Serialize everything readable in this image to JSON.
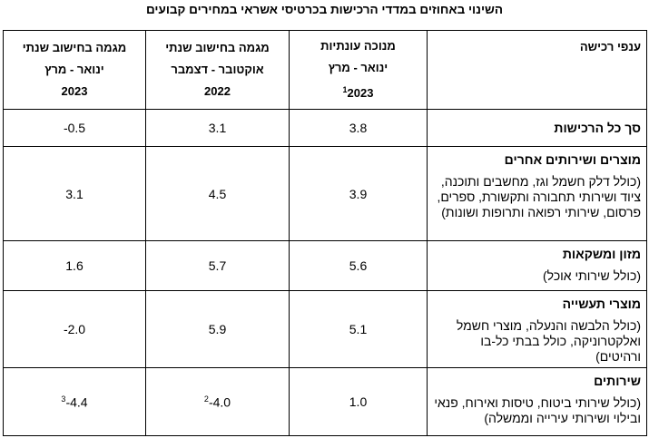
{
  "title": "השינוי באחוזים במדדי הרכישות בכרטיסי אשראי במחירים קבועים",
  "table": {
    "columns": [
      {
        "lines": [
          "ענפי רכישה"
        ]
      },
      {
        "lines": [
          "מנוכה עונתיות",
          "ינואר - מרץ",
          "2023"
        ],
        "note": "1"
      },
      {
        "lines": [
          "מגמה בחישוב שנתי",
          "אוקטובר - דצמבר",
          "2022"
        ]
      },
      {
        "lines": [
          "מגמה בחישוב שנתי",
          "ינואר - מרץ",
          "2023"
        ]
      }
    ],
    "rows": [
      {
        "name": "סך כל הרכישות",
        "values": [
          {
            "text": "3.8"
          },
          {
            "text": "3.1"
          },
          {
            "text": "-0.5"
          }
        ]
      },
      {
        "name": "מוצרים ושירותים אחרים",
        "description": "(כולל דלק חשמל וגז, מחשבים ותוכנה, ציוד ושירותי תחבורה ותקשורת, ספרים, פרסום, שירותי רפואה ותרופות ושונות)",
        "values": [
          {
            "text": "3.9"
          },
          {
            "text": "4.5"
          },
          {
            "text": "3.1"
          }
        ]
      },
      {
        "name": "מזון ומשקאות",
        "description": "(כולל שירותי אוכל)",
        "values": [
          {
            "text": "5.6"
          },
          {
            "text": "5.7"
          },
          {
            "text": "1.6"
          }
        ]
      },
      {
        "name": "מוצרי תעשייה",
        "description": "(כולל הלבשה והנעלה, מוצרי חשמל ואלקטרוניקה, כולל בבתי כל-בו ורהיטים)",
        "values": [
          {
            "text": "5.1"
          },
          {
            "text": "5.9"
          },
          {
            "text": "-2.0"
          }
        ]
      },
      {
        "name": "שירותים",
        "description": "(כולל שירותי ביטוח, טיסות ואירוח, פנאי ובילוי ושירותי עירייה וממשלה)",
        "values": [
          {
            "text": "1.0"
          },
          {
            "text": "-4.0",
            "note": "2"
          },
          {
            "text": "-4.4",
            "note": "3"
          }
        ]
      }
    ]
  }
}
